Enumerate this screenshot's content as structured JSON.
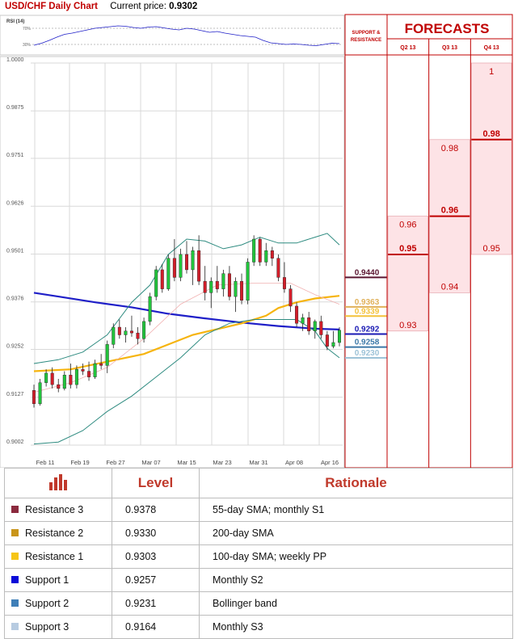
{
  "header": {
    "title": "USD/CHF Daily Chart",
    "current_price_label": "Current price:",
    "current_price": "0.9302"
  },
  "colors": {
    "accent": "#c00000",
    "grid": "#d9d9d9",
    "forecast_fill": "#fde3e6",
    "forecast_line": "#c00000",
    "sma_blue": "#1f1fc8",
    "sma_orange": "#f6b40e",
    "bollinger": "#2e8b80",
    "candle_up": "#22c43c",
    "candle_down": "#d21e2a"
  },
  "chart_data": {
    "type": "candlestick",
    "instrument": "USD/CHF",
    "ylim": [
      0.9002,
      1.0
    ],
    "y_ticks": [
      "1.0000",
      "0.9875",
      "0.9751",
      "0.9626",
      "0.9501",
      "0.9376",
      "0.9252",
      "0.9127",
      "0.9002"
    ],
    "x_ticks": [
      "Feb 11",
      "Feb 19",
      "Feb 27",
      "Mar 07",
      "Mar 15",
      "Mar 23",
      "Mar 31",
      "Apr 08",
      "Apr 16"
    ],
    "candles": [
      [
        0.9145,
        0.916,
        0.91,
        0.911
      ],
      [
        0.911,
        0.9175,
        0.9105,
        0.9165
      ],
      [
        0.9165,
        0.92,
        0.9155,
        0.919
      ],
      [
        0.919,
        0.9205,
        0.915,
        0.916
      ],
      [
        0.916,
        0.9175,
        0.914,
        0.915
      ],
      [
        0.915,
        0.9195,
        0.9145,
        0.9185
      ],
      [
        0.9185,
        0.9215,
        0.915,
        0.916
      ],
      [
        0.916,
        0.921,
        0.915,
        0.92
      ],
      [
        0.92,
        0.9215,
        0.9185,
        0.9195
      ],
      [
        0.9195,
        0.922,
        0.917,
        0.918
      ],
      [
        0.918,
        0.9225,
        0.9175,
        0.9215
      ],
      [
        0.9215,
        0.924,
        0.92,
        0.921
      ],
      [
        0.921,
        0.9275,
        0.919,
        0.9265
      ],
      [
        0.9265,
        0.932,
        0.9255,
        0.931
      ],
      [
        0.931,
        0.933,
        0.928,
        0.929
      ],
      [
        0.929,
        0.931,
        0.927,
        0.93
      ],
      [
        0.93,
        0.934,
        0.9285,
        0.9295
      ],
      [
        0.9295,
        0.931,
        0.9265,
        0.928
      ],
      [
        0.928,
        0.9335,
        0.927,
        0.9325
      ],
      [
        0.9325,
        0.94,
        0.9315,
        0.939
      ],
      [
        0.939,
        0.947,
        0.938,
        0.946
      ],
      [
        0.946,
        0.9475,
        0.94,
        0.941
      ],
      [
        0.941,
        0.95,
        0.9405,
        0.949
      ],
      [
        0.949,
        0.954,
        0.943,
        0.944
      ],
      [
        0.944,
        0.9515,
        0.943,
        0.95
      ],
      [
        0.95,
        0.9535,
        0.945,
        0.946
      ],
      [
        0.946,
        0.952,
        0.942,
        0.951
      ],
      [
        0.951,
        0.955,
        0.942,
        0.943
      ],
      [
        0.943,
        0.947,
        0.938,
        0.94
      ],
      [
        0.94,
        0.944,
        0.936,
        0.943
      ],
      [
        0.943,
        0.947,
        0.94,
        0.941
      ],
      [
        0.941,
        0.946,
        0.939,
        0.945
      ],
      [
        0.945,
        0.947,
        0.938,
        0.939
      ],
      [
        0.939,
        0.944,
        0.935,
        0.943
      ],
      [
        0.943,
        0.945,
        0.937,
        0.938
      ],
      [
        0.938,
        0.949,
        0.937,
        0.948
      ],
      [
        0.948,
        0.955,
        0.947,
        0.954
      ],
      [
        0.954,
        0.9545,
        0.947,
        0.948
      ],
      [
        0.948,
        0.953,
        0.947,
        0.951
      ],
      [
        0.951,
        0.952,
        0.947,
        0.949
      ],
      [
        0.949,
        0.95,
        0.943,
        0.944
      ],
      [
        0.944,
        0.948,
        0.94,
        0.941
      ],
      [
        0.941,
        0.942,
        0.935,
        0.9365
      ],
      [
        0.9365,
        0.9375,
        0.931,
        0.932
      ],
      [
        0.932,
        0.9345,
        0.93,
        0.9335
      ],
      [
        0.9335,
        0.935,
        0.929,
        0.93
      ],
      [
        0.93,
        0.933,
        0.928,
        0.9325
      ],
      [
        0.9325,
        0.934,
        0.928,
        0.929
      ],
      [
        0.929,
        0.93,
        0.925,
        0.926
      ],
      [
        0.926,
        0.93,
        0.9255,
        0.927
      ],
      [
        0.927,
        0.931,
        0.926,
        0.9302
      ]
    ],
    "series": [
      {
        "name": "200-day SMA",
        "color": "#1f1fc8",
        "values": [
          [
            0,
            0.94
          ],
          [
            4,
            0.939
          ],
          [
            10,
            0.9375
          ],
          [
            16,
            0.9362
          ],
          [
            22,
            0.9345
          ],
          [
            28,
            0.9333
          ],
          [
            34,
            0.9322
          ],
          [
            40,
            0.9313
          ],
          [
            46,
            0.9306
          ],
          [
            50,
            0.9304
          ]
        ]
      },
      {
        "name": "100-day SMA",
        "color": "#f6b40e",
        "values": [
          [
            0,
            0.9195
          ],
          [
            6,
            0.92
          ],
          [
            12,
            0.922
          ],
          [
            18,
            0.924
          ],
          [
            22,
            0.9265
          ],
          [
            26,
            0.929
          ],
          [
            30,
            0.9305
          ],
          [
            34,
            0.932
          ],
          [
            38,
            0.934
          ],
          [
            40,
            0.936
          ],
          [
            43,
            0.9375
          ],
          [
            46,
            0.9385
          ],
          [
            50,
            0.9392
          ]
        ]
      },
      {
        "name": "Bollinger upper",
        "color": "#2e8b80",
        "values": [
          [
            0,
            0.9215
          ],
          [
            4,
            0.9225
          ],
          [
            8,
            0.9245
          ],
          [
            12,
            0.929
          ],
          [
            16,
            0.9375
          ],
          [
            19,
            0.942
          ],
          [
            22,
            0.95
          ],
          [
            25,
            0.954
          ],
          [
            28,
            0.9535
          ],
          [
            31,
            0.9515
          ],
          [
            34,
            0.9525
          ],
          [
            37,
            0.9545
          ],
          [
            40,
            0.953
          ],
          [
            43,
            0.953
          ],
          [
            46,
            0.9545
          ],
          [
            48,
            0.9555
          ],
          [
            50,
            0.9525
          ]
        ]
      },
      {
        "name": "Bollinger middle",
        "color": "#f1b1b1",
        "values": [
          [
            0,
            0.914
          ],
          [
            6,
            0.9165
          ],
          [
            12,
            0.9205
          ],
          [
            18,
            0.928
          ],
          [
            24,
            0.937
          ],
          [
            30,
            0.942
          ],
          [
            36,
            0.9425
          ],
          [
            42,
            0.9425
          ],
          [
            46,
            0.9395
          ],
          [
            50,
            0.937
          ]
        ]
      },
      {
        "name": "Bollinger lower",
        "color": "#2e8b80",
        "values": [
          [
            0,
            0.9005
          ],
          [
            4,
            0.901
          ],
          [
            8,
            0.904
          ],
          [
            12,
            0.909
          ],
          [
            16,
            0.913
          ],
          [
            20,
            0.918
          ],
          [
            24,
            0.923
          ],
          [
            28,
            0.929
          ],
          [
            32,
            0.932
          ],
          [
            36,
            0.933
          ],
          [
            40,
            0.933
          ],
          [
            43,
            0.933
          ],
          [
            46,
            0.93
          ],
          [
            48,
            0.9255
          ],
          [
            50,
            0.923
          ]
        ]
      }
    ],
    "level_markers": [
      {
        "value": 0.944,
        "label": "0.9440",
        "color": "#5a1631"
      },
      {
        "value": 0.9363,
        "label": "0.9363",
        "color": "#e0b15a"
      },
      {
        "value": 0.9339,
        "label": "0.9339",
        "color": "#f3c23a"
      },
      {
        "value": 0.9292,
        "label": "0.9292",
        "color": "#1a1ab4"
      },
      {
        "value": 0.9258,
        "label": "0.9258",
        "color": "#3c78a8"
      },
      {
        "value": 0.923,
        "label": "0.9230",
        "color": "#9ec3d8"
      }
    ],
    "rsi": {
      "label": "RSI (14)",
      "levels": [
        "70%",
        "30%"
      ],
      "values": [
        28,
        33,
        40,
        48,
        55,
        58,
        62,
        66,
        70,
        72,
        74,
        76,
        75,
        72,
        70,
        73,
        74,
        71,
        68,
        66,
        70,
        68,
        64,
        60,
        62,
        58,
        55,
        52,
        50,
        48,
        40,
        34,
        32,
        30,
        31,
        30,
        28,
        27,
        30,
        33,
        32
      ]
    }
  },
  "sr_panel": {
    "title_line1": "SUPPORT &",
    "title_line2": "RESISTANCE"
  },
  "forecasts": {
    "title": "FORECASTS",
    "columns": [
      {
        "label": "Q2 13",
        "high": 0.96,
        "mid": 0.95,
        "low": 0.93,
        "high_label": "0.96",
        "mid_label": "0.95",
        "low_label": "0.93"
      },
      {
        "label": "Q3 13",
        "high": 0.98,
        "mid": 0.96,
        "low": 0.94,
        "high_label": "0.98",
        "mid_label": "0.96",
        "low_label": "0.94"
      },
      {
        "label": "Q4 13",
        "high": 1.0,
        "mid": 0.98,
        "low": 0.95,
        "high_label": "1",
        "mid_label": "0.98",
        "low_label": "0.95"
      }
    ]
  },
  "table": {
    "headers": {
      "level": "Level",
      "rationale": "Rationale"
    },
    "rows": [
      {
        "label": "Resistance 3",
        "level": "0.9378",
        "rationale": "55-day SMA; monthly S1",
        "color": "#8b2a3e"
      },
      {
        "label": "Resistance 2",
        "level": "0.9330",
        "rationale": "200-day SMA",
        "color": "#c9951a"
      },
      {
        "label": "Resistance 1",
        "level": "0.9303",
        "rationale": "100-day SMA; weekly PP",
        "color": "#f6c516"
      },
      {
        "label": "Support 1",
        "level": "0.9257",
        "rationale": "Monthly S2",
        "color": "#0a0ad8"
      },
      {
        "label": "Support 2",
        "level": "0.9231",
        "rationale": "Bollinger band",
        "color": "#3f7fb8"
      },
      {
        "label": "Support 3",
        "level": "0.9164",
        "rationale": "Monthly S3",
        "color": "#b7cbe1"
      }
    ]
  }
}
